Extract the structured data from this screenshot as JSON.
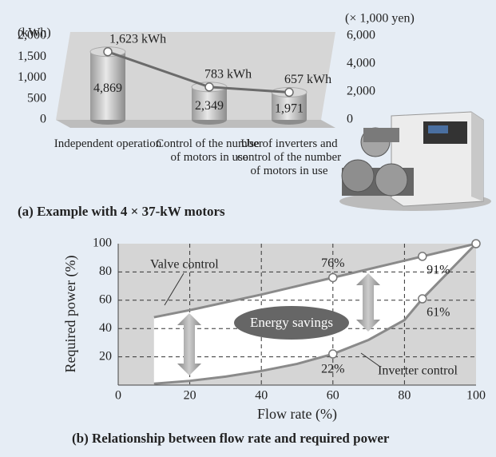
{
  "chart_data": [
    {
      "type": "bar",
      "ylabel": "(kWh)",
      "y2label": "(× 1,000 yen)",
      "caption": "(a) Example with 4 × 37-kW motors",
      "categories": [
        "Independent operation",
        "Control of the number of motors in use",
        "Use of inverters and control of the number of motors in use"
      ],
      "series": [
        {
          "type": "bar",
          "axis": "y2",
          "color": "#b8b8b8",
          "values": [
            4869,
            2349,
            1971
          ],
          "value_labels": [
            "4,869",
            "2,349",
            "1,971"
          ]
        },
        {
          "type": "line",
          "color": "#6b6b6b",
          "values": [
            1623,
            783,
            657
          ],
          "value_labels": [
            "1,623 kWh",
            "783 kWh",
            "657 kWh"
          ]
        }
      ],
      "ylim": [
        0,
        2000
      ],
      "yticks": [
        0,
        500,
        {
          "value": 1000,
          "label": "1,000"
        },
        {
          "value": 1500,
          "label": "1,500"
        },
        {
          "value": 2000,
          "label": "2,000"
        }
      ],
      "y2lim": [
        0,
        6000
      ],
      "y2ticks": [
        0,
        {
          "value": 2000,
          "label": "2,000"
        },
        {
          "value": 4000,
          "label": "4,000"
        },
        {
          "value": 6000,
          "label": "6,000"
        }
      ]
    },
    {
      "type": "line",
      "xlabel": "Flow rate (%)",
      "ylabel": "Required power (%)",
      "caption": "(b) Relationship between flow rate and required power",
      "xlim": [
        0,
        100
      ],
      "ylim": [
        0,
        100
      ],
      "xticks": [
        0,
        20,
        40,
        60,
        80,
        100
      ],
      "yticks": [
        20,
        40,
        60,
        80,
        100
      ],
      "grid": true,
      "series": [
        {
          "color": "#8a8a8a",
          "x": [
            10,
            20,
            40,
            60,
            85,
            100
          ],
          "values": [
            48,
            53,
            64,
            76,
            91,
            100
          ]
        },
        {
          "color": "#8a8a8a",
          "x": [
            10,
            20,
            30,
            40,
            50,
            60,
            70,
            80,
            85,
            90,
            100
          ],
          "values": [
            1,
            3,
            6,
            10,
            15,
            22,
            32,
            46,
            61,
            74,
            100
          ]
        }
      ],
      "markers": [
        {
          "x": 60,
          "y": 76,
          "label": "76%"
        },
        {
          "x": 85,
          "y": 91,
          "label": "91%"
        },
        {
          "x": 60,
          "y": 22,
          "label": "22%"
        },
        {
          "x": 85,
          "y": 61,
          "label": "61%"
        },
        {
          "x": 100,
          "y": 100
        }
      ],
      "annotations": {
        "valve": "Valve control",
        "inverter": "Inverter control",
        "savings": "Energy savings"
      }
    }
  ]
}
